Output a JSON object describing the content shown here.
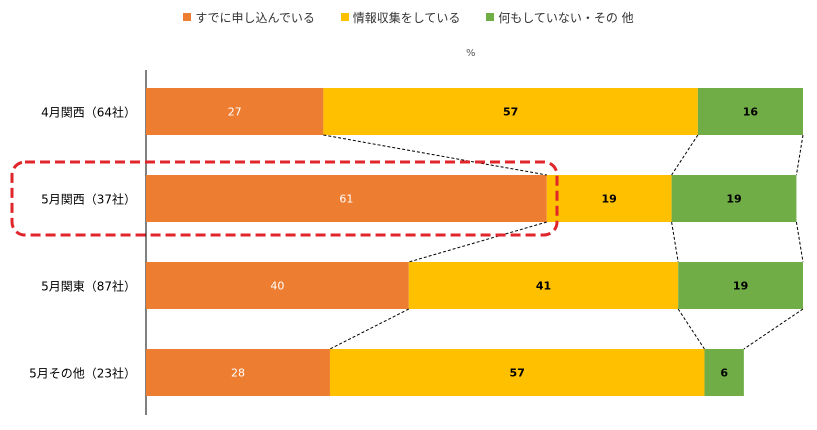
{
  "chart_data": {
    "type": "bar",
    "orientation": "horizontal",
    "stacked": true,
    "unit": "%",
    "categories": [
      "4月関西（64社）",
      "5月関西（37社）",
      "5月関東（87社）",
      "5月その他（23社）"
    ],
    "series": [
      {
        "name": "すでに申し込んでいる",
        "values": [
          27,
          61,
          40,
          28
        ],
        "color": "#ED7D31",
        "label_color": "#ffffff"
      },
      {
        "name": "情報収集をしている",
        "values": [
          57,
          19,
          41,
          57
        ],
        "color": "#FFC000",
        "label_color": "#000000"
      },
      {
        "name": "何もしていない・その 他",
        "values": [
          16,
          19,
          19,
          6
        ],
        "color": "#70AD47",
        "label_color": "#000000"
      }
    ],
    "xlim": [
      0,
      100
    ],
    "grid": false,
    "legend_position": "top",
    "series_lines": true,
    "highlight": {
      "category": "5月関西（37社）",
      "style": "red dashed rounded box"
    }
  }
}
